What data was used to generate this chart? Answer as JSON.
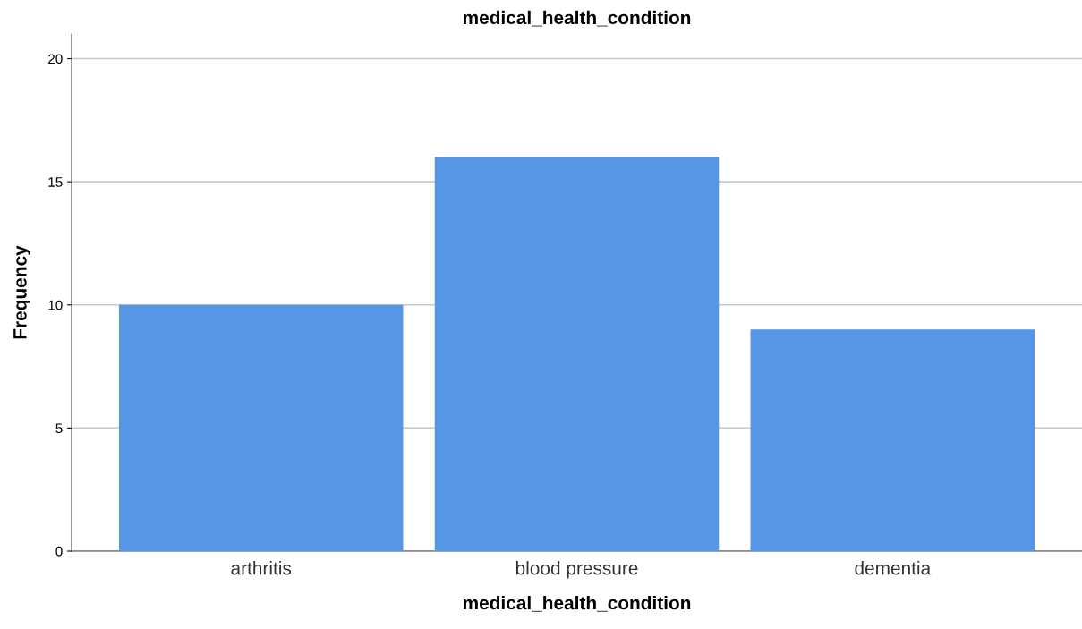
{
  "chart_data": {
    "type": "bar",
    "title": "medical_health_condition",
    "xlabel": "medical_health_condition",
    "ylabel": "Frequency",
    "categories": [
      "arthritis",
      "blood pressure",
      "dementia"
    ],
    "values": [
      10,
      16,
      9
    ],
    "color": "#5596e5",
    "ylim": [
      0,
      21
    ],
    "yticks": [
      0,
      5,
      10,
      15,
      20
    ],
    "grid": "y",
    "legend": false
  }
}
